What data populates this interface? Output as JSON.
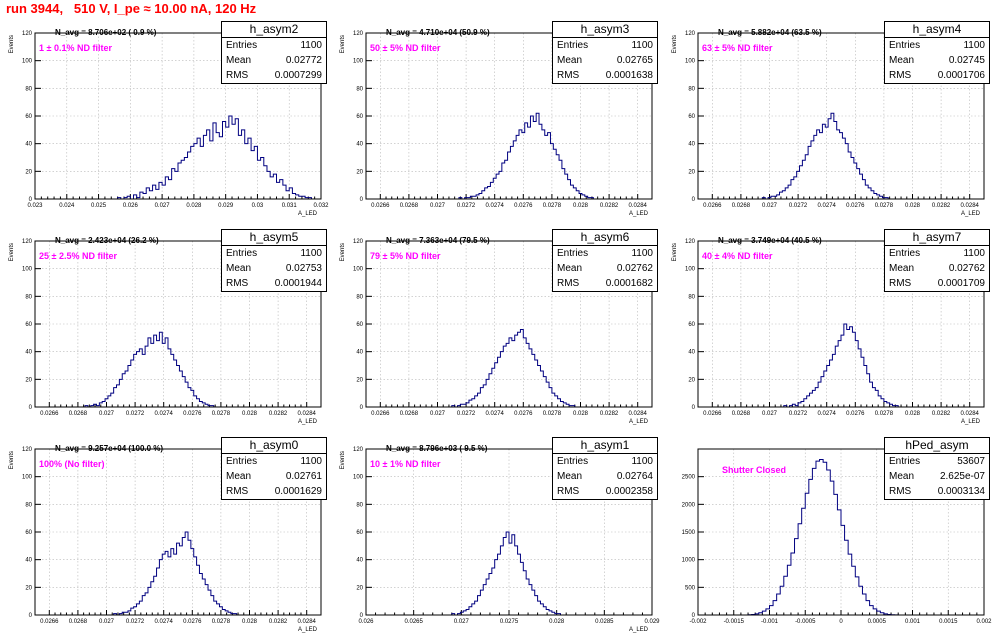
{
  "run_title": "run 3944,   510 V, I_pe ≈ 10.00 nA, 120 Hz",
  "panels": [
    {
      "name": "h_asym2",
      "n_avg": "N_avg = 8.706e+02 ( 0.9 %)",
      "filter": "1 ± 0.1% ND filter",
      "entries": "1100",
      "mean": "0.02772",
      "rms": "0.0007299"
    },
    {
      "name": "h_asym3",
      "n_avg": "N_avg = 4.710e+04 (50.9 %)",
      "filter": "50 ± 5% ND filter",
      "entries": "1100",
      "mean": "0.02765",
      "rms": "0.0001638"
    },
    {
      "name": "h_asym4",
      "n_avg": "N_avg = 5.882e+04 (63.5 %)",
      "filter": "63 ± 5% ND filter",
      "entries": "1100",
      "mean": "0.02745",
      "rms": "0.0001706"
    },
    {
      "name": "h_asym5",
      "n_avg": "N_avg = 2.423e+04 (26.2 %)",
      "filter": "25 ± 2.5% ND filter",
      "entries": "1100",
      "mean": "0.02753",
      "rms": "0.0001944"
    },
    {
      "name": "h_asym6",
      "n_avg": "N_avg = 7.363e+04 (79.5 %)",
      "filter": "79 ± 5% ND filter",
      "entries": "1100",
      "mean": "0.02762",
      "rms": "0.0001682"
    },
    {
      "name": "h_asym7",
      "n_avg": "N_avg = 3.749e+04 (40.5 %)",
      "filter": "40 ± 4% ND filter",
      "entries": "1100",
      "mean": "0.02762",
      "rms": "0.0001709"
    },
    {
      "name": "h_asym0",
      "n_avg": "N_avg = 9.257e+04 (100.0 %)",
      "filter": "100% (No filter)",
      "entries": "1100",
      "mean": "0.02761",
      "rms": "0.0001629"
    },
    {
      "name": "h_asym1",
      "n_avg": "N_avg = 8.796e+03 ( 9.5 %)",
      "filter": "10 ± 1% ND filter",
      "entries": "1100",
      "mean": "0.02764",
      "rms": "0.0002358"
    },
    {
      "name": "hPed_asym",
      "n_avg": "",
      "filter": "Shutter Closed",
      "entries": "53607",
      "mean": "2.625e-07",
      "rms": "0.0003134"
    }
  ],
  "stats_labels": {
    "entries": "Entries",
    "mean": "Mean",
    "rms": "RMS"
  },
  "colors": {
    "title": "#ff0000",
    "filter_text": "#ff00ff",
    "histogram": "#000080",
    "grid": "#b8b8b8"
  },
  "chart_data": [
    {
      "type": "bar",
      "title": "h_asym2",
      "ylabel": "Events",
      "xlabel": "A_LED",
      "grid": true,
      "legend": "top-right",
      "xlim": [
        0.023,
        0.032
      ],
      "ylim": [
        0,
        120
      ],
      "xticks": [
        "0.023",
        "0.024",
        "0.025",
        "0.026",
        "0.027",
        "0.028",
        "0.029",
        "0.03",
        "0.031",
        "0.032"
      ],
      "yticks": [
        "0",
        "20",
        "40",
        "60",
        "80",
        "100",
        "120"
      ],
      "bin_start": 0.0256,
      "bin_width": 0.0001,
      "values": [
        1,
        0,
        1,
        2,
        0,
        3,
        1,
        5,
        4,
        8,
        6,
        10,
        7,
        12,
        10,
        16,
        14,
        22,
        20,
        26,
        28,
        30,
        34,
        38,
        40,
        44,
        38,
        46,
        50,
        42,
        55,
        48,
        45,
        56,
        52,
        60,
        54,
        58,
        46,
        50,
        40,
        44,
        35,
        38,
        28,
        30,
        24,
        20,
        16,
        18,
        12,
        14,
        10,
        6,
        8,
        4,
        3,
        2,
        2,
        1,
        1
      ]
    },
    {
      "type": "bar",
      "title": "h_asym3",
      "ylabel": "Events",
      "xlabel": "A_LED",
      "grid": true,
      "legend": "top-right",
      "xlim": [
        0.0265,
        0.0285
      ],
      "ylim": [
        0,
        120
      ],
      "xticks": [
        "0.0266",
        "0.0268",
        "0.027",
        "0.0272",
        "0.0274",
        "0.0276",
        "0.0278",
        "0.028",
        "0.0282",
        "0.0284"
      ],
      "yticks": [
        "0",
        "20",
        "40",
        "60",
        "80",
        "100",
        "120"
      ],
      "bin_start": 0.02715,
      "bin_width": 2e-05,
      "values": [
        1,
        0,
        1,
        1,
        2,
        2,
        3,
        4,
        6,
        8,
        9,
        12,
        15,
        18,
        20,
        26,
        28,
        34,
        38,
        42,
        46,
        50,
        48,
        55,
        52,
        60,
        56,
        62,
        54,
        50,
        46,
        48,
        40,
        36,
        32,
        28,
        22,
        18,
        14,
        10,
        8,
        6,
        4,
        3,
        2,
        1,
        1
      ]
    },
    {
      "type": "bar",
      "title": "h_asym4",
      "ylabel": "Events",
      "xlabel": "A_LED",
      "grid": true,
      "legend": "top-right",
      "xlim": [
        0.0265,
        0.0285
      ],
      "ylim": [
        0,
        120
      ],
      "xticks": [
        "0.0266",
        "0.0268",
        "0.027",
        "0.0272",
        "0.0274",
        "0.0276",
        "0.0278",
        "0.028",
        "0.0282",
        "0.0284"
      ],
      "yticks": [
        "0",
        "20",
        "40",
        "60",
        "80",
        "100",
        "120"
      ],
      "bin_start": 0.02695,
      "bin_width": 2e-05,
      "values": [
        1,
        0,
        1,
        2,
        2,
        3,
        5,
        6,
        8,
        10,
        14,
        16,
        20,
        24,
        28,
        32,
        38,
        42,
        46,
        50,
        48,
        54,
        52,
        58,
        62,
        56,
        50,
        48,
        44,
        40,
        34,
        30,
        26,
        22,
        18,
        14,
        10,
        8,
        6,
        4,
        3,
        2,
        1,
        1
      ]
    },
    {
      "type": "bar",
      "title": "h_asym5",
      "ylabel": "Events",
      "xlabel": "A_LED",
      "grid": true,
      "legend": "top-right",
      "xlim": [
        0.0265,
        0.0285
      ],
      "ylim": [
        0,
        120
      ],
      "xticks": [
        "0.0266",
        "0.0268",
        "0.027",
        "0.0272",
        "0.0274",
        "0.0276",
        "0.0278",
        "0.028",
        "0.0282",
        "0.0284"
      ],
      "yticks": [
        "0",
        "20",
        "40",
        "60",
        "80",
        "100",
        "120"
      ],
      "bin_start": 0.02685,
      "bin_width": 2e-05,
      "values": [
        1,
        0,
        1,
        2,
        1,
        3,
        4,
        6,
        8,
        10,
        14,
        16,
        20,
        24,
        26,
        30,
        34,
        38,
        40,
        42,
        38,
        44,
        50,
        46,
        52,
        48,
        54,
        46,
        50,
        42,
        38,
        34,
        30,
        26,
        22,
        18,
        14,
        12,
        8,
        6,
        4,
        3,
        2,
        1,
        1
      ]
    },
    {
      "type": "bar",
      "title": "h_asym6",
      "ylabel": "Events",
      "xlabel": "A_LED",
      "grid": true,
      "legend": "top-right",
      "xlim": [
        0.0265,
        0.0285
      ],
      "ylim": [
        0,
        120
      ],
      "xticks": [
        "0.0266",
        "0.0268",
        "0.027",
        "0.0272",
        "0.0274",
        "0.0276",
        "0.0278",
        "0.028",
        "0.0282",
        "0.0284"
      ],
      "yticks": [
        "0",
        "20",
        "40",
        "60",
        "80",
        "100",
        "120"
      ],
      "bin_start": 0.0271,
      "bin_width": 2e-05,
      "values": [
        1,
        0,
        1,
        2,
        2,
        3,
        5,
        6,
        8,
        10,
        14,
        16,
        20,
        24,
        28,
        32,
        36,
        40,
        44,
        46,
        50,
        48,
        52,
        54,
        56,
        50,
        46,
        42,
        38,
        34,
        30,
        26,
        22,
        18,
        14,
        10,
        8,
        6,
        4,
        3,
        2,
        1,
        1
      ]
    },
    {
      "type": "bar",
      "title": "h_asym7",
      "ylabel": "Events",
      "xlabel": "A_LED",
      "grid": true,
      "legend": "top-right",
      "xlim": [
        0.0265,
        0.0285
      ],
      "ylim": [
        0,
        120
      ],
      "xticks": [
        "0.0266",
        "0.0268",
        "0.027",
        "0.0272",
        "0.0274",
        "0.0276",
        "0.0278",
        "0.028",
        "0.0282",
        "0.0284"
      ],
      "yticks": [
        "0",
        "20",
        "40",
        "60",
        "80",
        "100",
        "120"
      ],
      "bin_start": 0.0271,
      "bin_width": 2e-05,
      "values": [
        1,
        0,
        1,
        2,
        1,
        3,
        4,
        6,
        8,
        10,
        12,
        14,
        18,
        22,
        26,
        30,
        34,
        38,
        44,
        48,
        52,
        60,
        56,
        58,
        54,
        48,
        42,
        36,
        30,
        24,
        18,
        14,
        12,
        8,
        6,
        4,
        3,
        2,
        1,
        1
      ]
    },
    {
      "type": "bar",
      "title": "h_asym0",
      "ylabel": "Events",
      "xlabel": "A_LED",
      "grid": true,
      "legend": "top-right",
      "xlim": [
        0.0265,
        0.0285
      ],
      "ylim": [
        0,
        120
      ],
      "xticks": [
        "0.0266",
        "0.0268",
        "0.027",
        "0.0272",
        "0.0274",
        "0.0276",
        "0.0278",
        "0.028",
        "0.0282",
        "0.0284"
      ],
      "yticks": [
        "0",
        "20",
        "40",
        "60",
        "80",
        "100",
        "120"
      ],
      "bin_start": 0.02705,
      "bin_width": 2e-05,
      "values": [
        1,
        0,
        1,
        2,
        2,
        3,
        5,
        6,
        8,
        10,
        14,
        16,
        20,
        24,
        28,
        34,
        40,
        44,
        46,
        42,
        48,
        44,
        52,
        50,
        56,
        60,
        54,
        48,
        42,
        36,
        30,
        26,
        22,
        18,
        14,
        10,
        8,
        6,
        4,
        3,
        2,
        1,
        1
      ]
    },
    {
      "type": "bar",
      "title": "h_asym1",
      "ylabel": "Events",
      "xlabel": "A_LED",
      "grid": true,
      "legend": "top-right",
      "xlim": [
        0.026,
        0.029
      ],
      "ylim": [
        0,
        120
      ],
      "xticks": [
        "0.026",
        "0.0265",
        "0.027",
        "0.0275",
        "0.028",
        "0.0285",
        "0.029"
      ],
      "yticks": [
        "0",
        "20",
        "40",
        "60",
        "80",
        "100",
        "120"
      ],
      "bin_start": 0.0269,
      "bin_width": 3e-05,
      "values": [
        1,
        0,
        1,
        2,
        3,
        4,
        6,
        8,
        10,
        14,
        18,
        22,
        26,
        30,
        34,
        40,
        44,
        50,
        56,
        60,
        52,
        58,
        50,
        44,
        38,
        32,
        26,
        22,
        18,
        14,
        10,
        8,
        6,
        4,
        3,
        2,
        1,
        1
      ]
    },
    {
      "type": "bar",
      "title": "hPed_asym",
      "ylabel": "",
      "xlabel": "",
      "grid": true,
      "legend": "top-right",
      "xlim": [
        -0.002,
        0.002
      ],
      "ylim": [
        0,
        3000
      ],
      "xticks": [
        "-0.002",
        "-0.0015",
        "-0.001",
        "-0.0005",
        "0",
        "0.0005",
        "0.001",
        "0.0015",
        "0.002"
      ],
      "yticks": [
        "0",
        "500",
        "1000",
        "1500",
        "2000",
        "2500"
      ],
      "bin_start": -0.0013,
      "bin_width": 5e-05,
      "values": [
        5,
        10,
        20,
        40,
        70,
        110,
        170,
        260,
        380,
        520,
        700,
        900,
        1120,
        1380,
        1650,
        1930,
        2200,
        2450,
        2650,
        2780,
        2810,
        2760,
        2620,
        2420,
        2180,
        1900,
        1620,
        1350,
        1100,
        880,
        690,
        520,
        380,
        260,
        170,
        110,
        70,
        40,
        20,
        10,
        5,
        3
      ]
    }
  ]
}
